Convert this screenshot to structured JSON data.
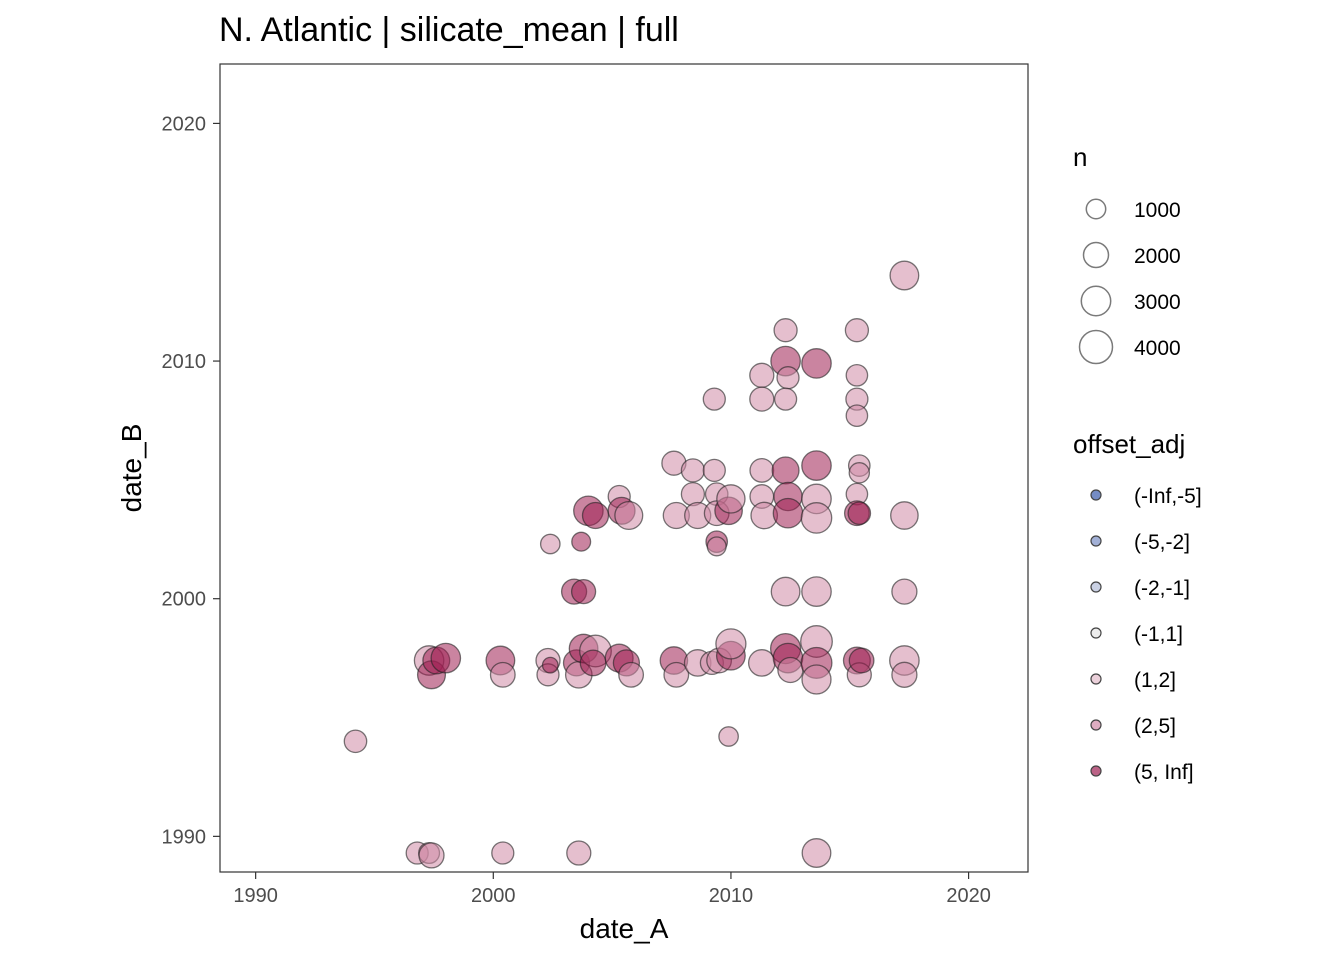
{
  "chart_data": {
    "type": "scatter",
    "title": "N. Atlantic | silicate_mean | full",
    "xlabel": "date_A",
    "ylabel": "date_B",
    "xlim": [
      1988.5,
      2022.5
    ],
    "ylim": [
      1988.5,
      2022.5
    ],
    "x_ticks": [
      1990,
      2000,
      2010,
      2020
    ],
    "y_ticks": [
      1990,
      2000,
      2010,
      2020
    ],
    "grid": false,
    "legend_position": "right",
    "size_legend": {
      "title": "n",
      "entries": [
        {
          "label": "1000",
          "value": 1000
        },
        {
          "label": "2000",
          "value": 2000
        },
        {
          "label": "3000",
          "value": 3000
        },
        {
          "label": "4000",
          "value": 4000
        }
      ]
    },
    "color_legend": {
      "title": "offset_adj",
      "entries": [
        {
          "label": "(-Inf,-5]",
          "color": "#3b5bab"
        },
        {
          "label": "(-5,-2]",
          "color": "#7b8fc4"
        },
        {
          "label": "(-2,-1]",
          "color": "#b4bed8"
        },
        {
          "label": "(-1,1]",
          "color": "#e6e6e6"
        },
        {
          "label": "(1,2]",
          "color": "#e2bccb"
        },
        {
          "label": "(2,5]",
          "color": "#d08aa6"
        },
        {
          "label": "(5, Inf]",
          "color": "#9e1f52"
        }
      ]
    },
    "points": [
      {
        "x": 1994.2,
        "y": 1994.0,
        "n": 1500,
        "c": "(2,5]"
      },
      {
        "x": 1996.8,
        "y": 1989.3,
        "n": 1400,
        "c": "(2,5]"
      },
      {
        "x": 1997.3,
        "y": 1989.3,
        "n": 1200,
        "c": "(2,5]"
      },
      {
        "x": 1997.4,
        "y": 1989.2,
        "n": 2000,
        "c": "(2,5]"
      },
      {
        "x": 2000.4,
        "y": 1989.3,
        "n": 1400,
        "c": "(2,5]"
      },
      {
        "x": 2003.6,
        "y": 1989.3,
        "n": 1800,
        "c": "(2,5]"
      },
      {
        "x": 2013.6,
        "y": 1989.3,
        "n": 2800,
        "c": "(2,5]"
      },
      {
        "x": 1997.3,
        "y": 1997.4,
        "n": 3000,
        "c": "(2,5]"
      },
      {
        "x": 1997.4,
        "y": 1996.8,
        "n": 2600,
        "c": "(5, Inf]"
      },
      {
        "x": 1997.6,
        "y": 1997.4,
        "n": 2400,
        "c": "(5, Inf]"
      },
      {
        "x": 1998.0,
        "y": 1997.5,
        "n": 3000,
        "c": "(5, Inf]"
      },
      {
        "x": 2000.3,
        "y": 1997.4,
        "n": 2800,
        "c": "(5, Inf]"
      },
      {
        "x": 2000.4,
        "y": 1996.8,
        "n": 1900,
        "c": "(2,5]"
      },
      {
        "x": 2002.3,
        "y": 1997.4,
        "n": 1800,
        "c": "(2,5]"
      },
      {
        "x": 2002.3,
        "y": 1996.8,
        "n": 1400,
        "c": "(2,5]"
      },
      {
        "x": 2002.4,
        "y": 1997.2,
        "n": 500,
        "c": "(5, Inf]"
      },
      {
        "x": 2003.5,
        "y": 1997.3,
        "n": 2200,
        "c": "(5, Inf]"
      },
      {
        "x": 2003.6,
        "y": 1996.8,
        "n": 2300,
        "c": "(2,5]"
      },
      {
        "x": 2003.8,
        "y": 1997.9,
        "n": 2800,
        "c": "(5, Inf]"
      },
      {
        "x": 2004.3,
        "y": 1997.8,
        "n": 3600,
        "c": "(2,5]"
      },
      {
        "x": 2004.2,
        "y": 1997.3,
        "n": 2100,
        "c": "(5, Inf]"
      },
      {
        "x": 2005.3,
        "y": 1997.5,
        "n": 2600,
        "c": "(5, Inf]"
      },
      {
        "x": 2005.6,
        "y": 1997.3,
        "n": 2200,
        "c": "(5, Inf]"
      },
      {
        "x": 2005.8,
        "y": 1996.8,
        "n": 1900,
        "c": "(2,5]"
      },
      {
        "x": 2007.6,
        "y": 1997.4,
        "n": 2500,
        "c": "(5, Inf]"
      },
      {
        "x": 2007.7,
        "y": 1996.8,
        "n": 1900,
        "c": "(2,5]"
      },
      {
        "x": 2008.6,
        "y": 1997.3,
        "n": 2300,
        "c": "(2,5]"
      },
      {
        "x": 2009.2,
        "y": 1997.3,
        "n": 1600,
        "c": "(2,5]"
      },
      {
        "x": 2009.5,
        "y": 1997.4,
        "n": 1900,
        "c": "(2,5]"
      },
      {
        "x": 2010.0,
        "y": 1997.6,
        "n": 2800,
        "c": "(5, Inf]"
      },
      {
        "x": 2010.0,
        "y": 1998.1,
        "n": 3200,
        "c": "(2,5]"
      },
      {
        "x": 2011.3,
        "y": 1997.3,
        "n": 2300,
        "c": "(2,5]"
      },
      {
        "x": 2012.3,
        "y": 1997.9,
        "n": 3200,
        "c": "(5, Inf]"
      },
      {
        "x": 2012.4,
        "y": 1997.5,
        "n": 3000,
        "c": "(5, Inf]"
      },
      {
        "x": 2012.5,
        "y": 1997.0,
        "n": 2000,
        "c": "(2,5]"
      },
      {
        "x": 2013.6,
        "y": 1998.2,
        "n": 3600,
        "c": "(2,5]"
      },
      {
        "x": 2013.6,
        "y": 1997.3,
        "n": 3400,
        "c": "(5, Inf]"
      },
      {
        "x": 2013.6,
        "y": 1996.6,
        "n": 2900,
        "c": "(2,5]"
      },
      {
        "x": 2015.3,
        "y": 1997.4,
        "n": 2400,
        "c": "(5, Inf]"
      },
      {
        "x": 2015.4,
        "y": 1996.8,
        "n": 1800,
        "c": "(2,5]"
      },
      {
        "x": 2015.5,
        "y": 1997.4,
        "n": 1900,
        "c": "(5, Inf]"
      },
      {
        "x": 2017.3,
        "y": 1997.4,
        "n": 3000,
        "c": "(2,5]"
      },
      {
        "x": 2017.3,
        "y": 1996.8,
        "n": 2000,
        "c": "(2,5]"
      },
      {
        "x": 2009.9,
        "y": 1994.2,
        "n": 1000,
        "c": "(2,5]"
      },
      {
        "x": 2003.4,
        "y": 2000.3,
        "n": 2000,
        "c": "(5, Inf]"
      },
      {
        "x": 2003.8,
        "y": 2000.3,
        "n": 1800,
        "c": "(5, Inf]"
      },
      {
        "x": 2012.3,
        "y": 2000.3,
        "n": 2800,
        "c": "(2,5]"
      },
      {
        "x": 2013.6,
        "y": 2000.3,
        "n": 3000,
        "c": "(2,5]"
      },
      {
        "x": 2017.3,
        "y": 2000.3,
        "n": 2000,
        "c": "(2,5]"
      },
      {
        "x": 2002.4,
        "y": 2002.3,
        "n": 1000,
        "c": "(2,5]"
      },
      {
        "x": 2003.7,
        "y": 2002.4,
        "n": 900,
        "c": "(5, Inf]"
      },
      {
        "x": 2009.4,
        "y": 2002.4,
        "n": 1300,
        "c": "(5, Inf]"
      },
      {
        "x": 2009.4,
        "y": 2002.2,
        "n": 900,
        "c": "(2,5]"
      },
      {
        "x": 2004.0,
        "y": 2003.7,
        "n": 3000,
        "c": "(5, Inf]"
      },
      {
        "x": 2004.3,
        "y": 2003.5,
        "n": 2200,
        "c": "(5, Inf]"
      },
      {
        "x": 2005.3,
        "y": 2004.3,
        "n": 1400,
        "c": "(2,5]"
      },
      {
        "x": 2005.4,
        "y": 2003.7,
        "n": 2400,
        "c": "(5, Inf]"
      },
      {
        "x": 2005.7,
        "y": 2003.5,
        "n": 2600,
        "c": "(2,5]"
      },
      {
        "x": 2007.6,
        "y": 2005.7,
        "n": 1800,
        "c": "(2,5]"
      },
      {
        "x": 2008.4,
        "y": 2005.4,
        "n": 1600,
        "c": "(2,5]"
      },
      {
        "x": 2008.4,
        "y": 2004.4,
        "n": 1600,
        "c": "(2,5]"
      },
      {
        "x": 2007.7,
        "y": 2003.5,
        "n": 2200,
        "c": "(2,5]"
      },
      {
        "x": 2008.6,
        "y": 2003.5,
        "n": 2200,
        "c": "(2,5]"
      },
      {
        "x": 2009.3,
        "y": 2005.4,
        "n": 1400,
        "c": "(2,5]"
      },
      {
        "x": 2009.4,
        "y": 2004.4,
        "n": 1500,
        "c": "(2,5]"
      },
      {
        "x": 2009.4,
        "y": 2003.6,
        "n": 1900,
        "c": "(2,5]"
      },
      {
        "x": 2009.9,
        "y": 2003.7,
        "n": 2500,
        "c": "(5, Inf]"
      },
      {
        "x": 2010.0,
        "y": 2004.2,
        "n": 2700,
        "c": "(2,5]"
      },
      {
        "x": 2009.3,
        "y": 2008.4,
        "n": 1400,
        "c": "(2,5]"
      },
      {
        "x": 2011.3,
        "y": 2009.4,
        "n": 1800,
        "c": "(2,5]"
      },
      {
        "x": 2011.3,
        "y": 2008.4,
        "n": 1800,
        "c": "(2,5]"
      },
      {
        "x": 2011.3,
        "y": 2005.4,
        "n": 1700,
        "c": "(2,5]"
      },
      {
        "x": 2011.3,
        "y": 2004.3,
        "n": 1700,
        "c": "(2,5]"
      },
      {
        "x": 2011.4,
        "y": 2003.5,
        "n": 2300,
        "c": "(2,5]"
      },
      {
        "x": 2012.3,
        "y": 2011.3,
        "n": 1600,
        "c": "(2,5]"
      },
      {
        "x": 2012.3,
        "y": 2010.0,
        "n": 3000,
        "c": "(5, Inf]"
      },
      {
        "x": 2012.4,
        "y": 2009.3,
        "n": 1400,
        "c": "(2,5]"
      },
      {
        "x": 2012.3,
        "y": 2008.4,
        "n": 1400,
        "c": "(2,5]"
      },
      {
        "x": 2012.3,
        "y": 2005.4,
        "n": 2400,
        "c": "(5, Inf]"
      },
      {
        "x": 2012.4,
        "y": 2004.3,
        "n": 2700,
        "c": "(5, Inf]"
      },
      {
        "x": 2012.4,
        "y": 2003.6,
        "n": 3000,
        "c": "(5, Inf]"
      },
      {
        "x": 2013.6,
        "y": 2009.9,
        "n": 3000,
        "c": "(5, Inf]"
      },
      {
        "x": 2013.6,
        "y": 2005.6,
        "n": 3000,
        "c": "(5, Inf]"
      },
      {
        "x": 2013.6,
        "y": 2004.2,
        "n": 3000,
        "c": "(2,5]"
      },
      {
        "x": 2013.6,
        "y": 2003.4,
        "n": 3300,
        "c": "(2,5]"
      },
      {
        "x": 2015.3,
        "y": 2011.3,
        "n": 1600,
        "c": "(2,5]"
      },
      {
        "x": 2015.3,
        "y": 2009.4,
        "n": 1300,
        "c": "(2,5]"
      },
      {
        "x": 2015.3,
        "y": 2008.4,
        "n": 1400,
        "c": "(2,5]"
      },
      {
        "x": 2015.3,
        "y": 2007.7,
        "n": 1300,
        "c": "(2,5]"
      },
      {
        "x": 2015.4,
        "y": 2005.6,
        "n": 1300,
        "c": "(2,5]"
      },
      {
        "x": 2015.4,
        "y": 2005.3,
        "n": 1100,
        "c": "(2,5]"
      },
      {
        "x": 2015.3,
        "y": 2004.4,
        "n": 1300,
        "c": "(2,5]"
      },
      {
        "x": 2015.3,
        "y": 2003.6,
        "n": 1900,
        "c": "(5, Inf]"
      },
      {
        "x": 2015.4,
        "y": 2003.6,
        "n": 1500,
        "c": "(5, Inf]"
      },
      {
        "x": 2017.3,
        "y": 2013.6,
        "n": 2800,
        "c": "(2,5]"
      },
      {
        "x": 2017.3,
        "y": 2003.5,
        "n": 2500,
        "c": "(2,5]"
      }
    ]
  }
}
